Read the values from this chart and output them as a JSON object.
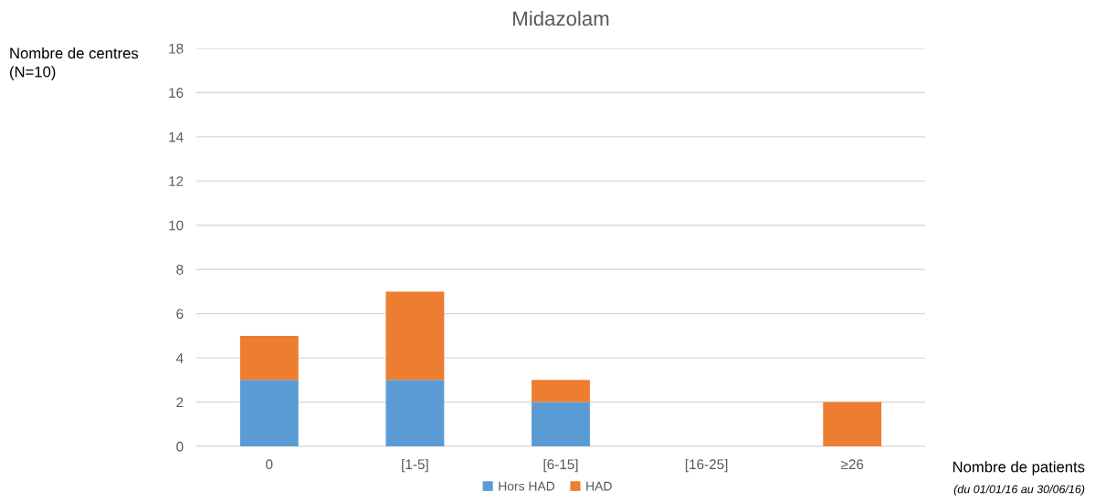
{
  "chart_data": {
    "type": "bar",
    "title": "Midazolam",
    "ylabel": "Nombre de centres\n(N=10)",
    "xlabel": "Nombre de patients",
    "annotations": [
      "(du 01/01/16 au 30/06/16)"
    ],
    "categories": [
      "0",
      "[1-5]",
      "[6-15]",
      "[16-25]",
      "≥26"
    ],
    "stacked": true,
    "series": [
      {
        "name": "Hors HAD",
        "color": "#5b9bd5",
        "values": [
          3,
          3,
          2,
          0,
          0
        ]
      },
      {
        "name": "HAD",
        "color": "#ed7d31",
        "values": [
          2,
          4,
          1,
          0,
          2
        ]
      }
    ],
    "ylim": [
      0,
      18
    ],
    "yticks": [
      0,
      2,
      4,
      6,
      8,
      10,
      12,
      14,
      16,
      18
    ],
    "grid": "y",
    "legend": "bottom"
  }
}
